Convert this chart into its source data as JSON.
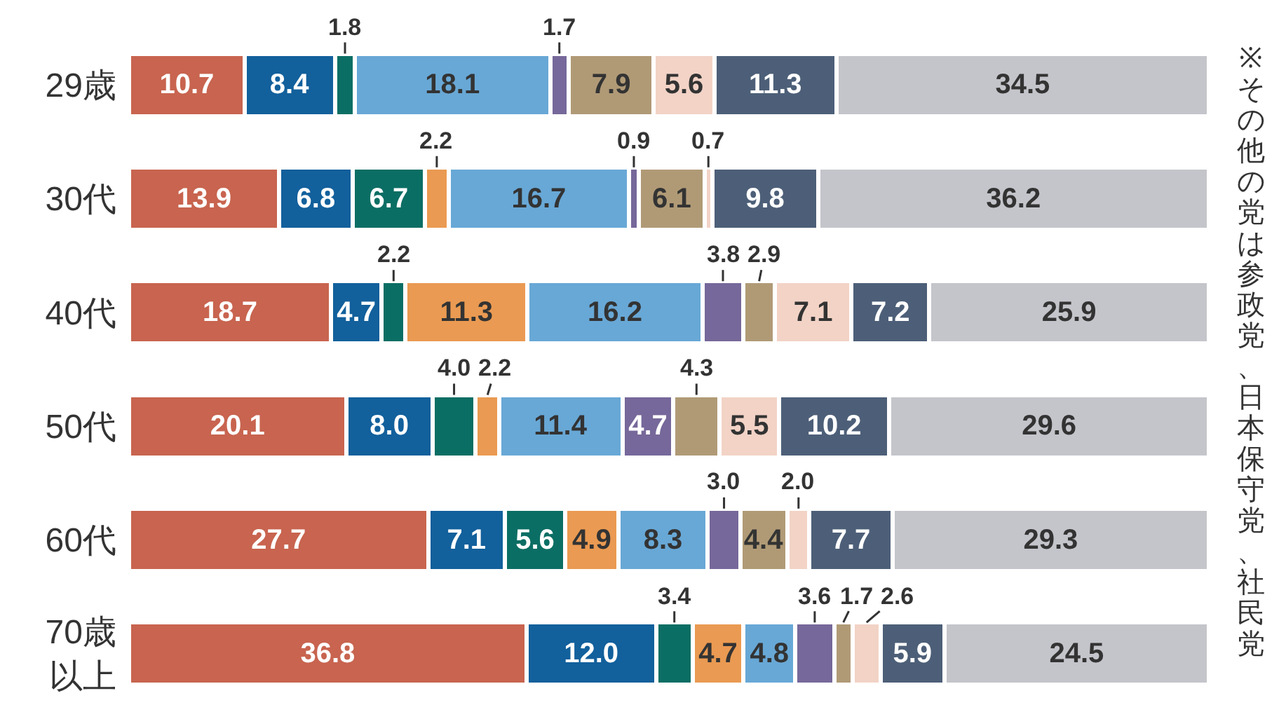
{
  "chart_data": {
    "type": "bar",
    "orientation": "horizontal",
    "stacked": true,
    "tick_labels": "y",
    "categories": [
      "29歳",
      "30代",
      "40代",
      "50代",
      "60代",
      "70歳以上"
    ],
    "xlim": [
      0,
      100
    ],
    "series": [
      {
        "color": "#c8644f",
        "values": [
          10.7,
          13.9,
          18.7,
          20.1,
          27.7,
          36.8
        ],
        "value_labels": [
          "10.7",
          "13.9",
          "18.7",
          "20.1",
          "27.7",
          "36.8"
        ]
      },
      {
        "color": "#12609c",
        "values": [
          8.4,
          6.8,
          4.7,
          8.0,
          7.1,
          12.0
        ],
        "value_labels": [
          "8.4",
          "6.8",
          "4.7",
          "8.0",
          "7.1",
          "12.0"
        ]
      },
      {
        "color": "#0b6e64",
        "values": [
          1.8,
          6.7,
          2.2,
          4.0,
          5.6,
          3.4
        ],
        "value_labels": [
          "1.8",
          "6.7",
          "2.2",
          "4.0",
          "5.6",
          "3.4"
        ]
      },
      {
        "color": "#ea9a52",
        "values": [
          null,
          2.2,
          11.3,
          2.2,
          4.9,
          4.7
        ],
        "value_labels": [
          null,
          "2.2",
          "11.3",
          "2.2",
          "4.9",
          "4.7"
        ]
      },
      {
        "color": "#68a8d6",
        "values": [
          18.1,
          16.7,
          16.2,
          11.4,
          8.3,
          4.8
        ],
        "value_labels": [
          "18.1",
          "16.7",
          "16.2",
          "11.4",
          "8.3",
          "4.8"
        ]
      },
      {
        "color": "#76689a",
        "values": [
          1.7,
          0.9,
          3.8,
          4.7,
          3.0,
          3.6
        ],
        "value_labels": [
          "1.7",
          "0.9",
          "3.8",
          "4.7",
          "3.0",
          "3.6"
        ]
      },
      {
        "color": "#b09a76",
        "values": [
          7.9,
          6.1,
          2.9,
          4.3,
          4.4,
          1.7
        ],
        "value_labels": [
          "7.9",
          "6.1",
          "2.9",
          "4.3",
          "4.4",
          "1.7"
        ]
      },
      {
        "color": "#f2d3c6",
        "values": [
          5.6,
          0.7,
          7.1,
          5.5,
          2.0,
          2.6
        ],
        "value_labels": [
          "5.6",
          "0.7",
          "7.1",
          "5.5",
          "2.0",
          "2.6"
        ]
      },
      {
        "color": "#4d5f78",
        "values": [
          11.3,
          9.8,
          7.2,
          10.2,
          7.7,
          5.9
        ],
        "value_labels": [
          "11.3",
          "9.8",
          "7.2",
          "10.2",
          "7.7",
          "5.9"
        ]
      },
      {
        "color": "#c4c5cb",
        "values": [
          34.5,
          36.2,
          25.9,
          29.6,
          29.3,
          24.5
        ],
        "value_labels": [
          "34.5",
          "36.2",
          "25.9",
          "29.6",
          "29.3",
          "24.5"
        ]
      }
    ],
    "annotations": [
      "※その他の党は参政党、日本保守党、社民党"
    ]
  }
}
